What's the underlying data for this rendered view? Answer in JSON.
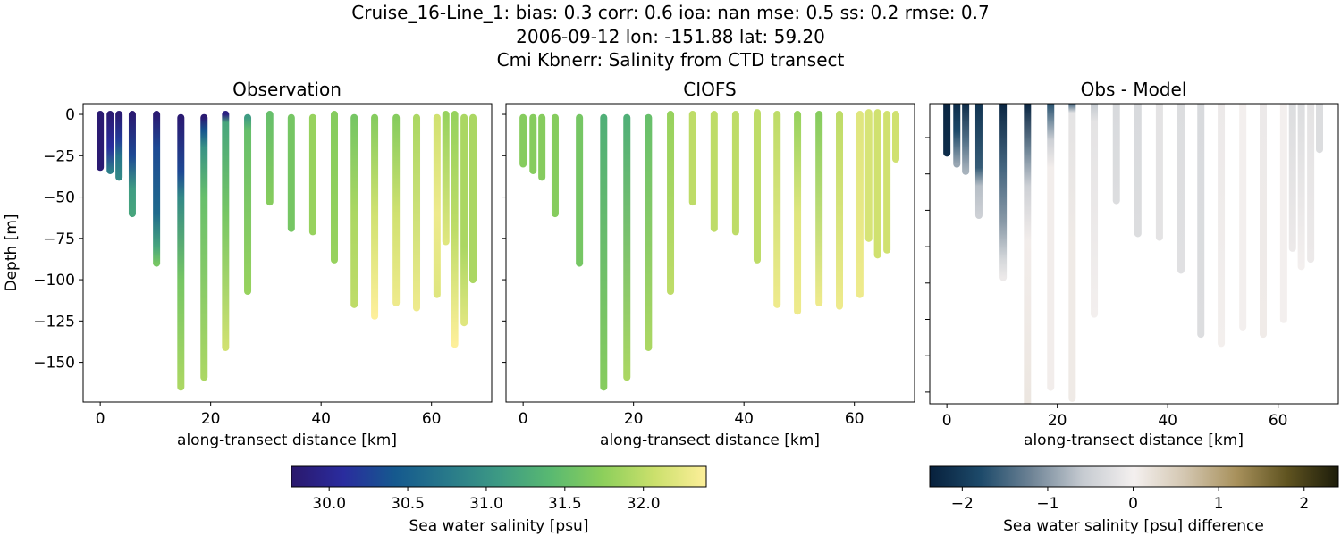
{
  "title_lines": [
    "Cruise_16-Line_1: bias: 0.3  corr: 0.6  ioa: nan  mse: 0.5  ss: 0.2  rmse: 0.7",
    "2006-09-12 lon: -151.88 lat: 59.20",
    "Cmi Kbnerr: Salinity from CTD transect"
  ],
  "chart_data": [
    {
      "type": "scatter",
      "title": "Observation",
      "xlabel": "along-transect distance [km]",
      "ylabel": "Depth [m]",
      "xlim": [
        -3.1,
        70.9
      ],
      "ylim": [
        -174,
        6.5
      ],
      "xticks": [
        0,
        20,
        40,
        60
      ],
      "yticks": [
        0,
        -25,
        -50,
        -75,
        -100,
        -125,
        -150
      ],
      "color_variable": "salinity",
      "stations": [
        {
          "x": 0,
          "profile": [
            [
              0,
              29.8
            ],
            [
              -32,
              29.8
            ]
          ]
        },
        {
          "x": 1.8,
          "profile": [
            [
              0,
              29.8
            ],
            [
              -20,
              30.1
            ],
            [
              -34,
              30.8
            ]
          ]
        },
        {
          "x": 3.4,
          "profile": [
            [
              0,
              29.8
            ],
            [
              -15,
              30.2
            ],
            [
              -25,
              30.7
            ],
            [
              -38,
              30.9
            ]
          ]
        },
        {
          "x": 5.8,
          "profile": [
            [
              0,
              29.8
            ],
            [
              -25,
              30.3
            ],
            [
              -45,
              31.1
            ],
            [
              -60,
              31.2
            ]
          ]
        },
        {
          "x": 10.2,
          "profile": [
            [
              0,
              29.8
            ],
            [
              -20,
              30.3
            ],
            [
              -60,
              30.6
            ],
            [
              -80,
              31.2
            ],
            [
              -90,
              31.6
            ]
          ]
        },
        {
          "x": 14.6,
          "profile": [
            [
              -2,
              29.8
            ],
            [
              -35,
              30.3
            ],
            [
              -50,
              30.9
            ],
            [
              -100,
              31.6
            ],
            [
              -165,
              31.9
            ]
          ]
        },
        {
          "x": 18.8,
          "profile": [
            [
              -2,
              29.8
            ],
            [
              -10,
              30.4
            ],
            [
              -20,
              31.0
            ],
            [
              -50,
              31.5
            ],
            [
              -159,
              31.9
            ]
          ]
        },
        {
          "x": 22.7,
          "profile": [
            [
              0,
              29.9
            ],
            [
              -5,
              31.2
            ],
            [
              -60,
              31.6
            ],
            [
              -141,
              32.1
            ]
          ]
        },
        {
          "x": 26.7,
          "profile": [
            [
              -2,
              31.1
            ],
            [
              -10,
              31.5
            ],
            [
              -107,
              31.8
            ]
          ]
        },
        {
          "x": 30.7,
          "profile": [
            [
              0,
              31.5
            ],
            [
              -53,
              31.7
            ]
          ]
        },
        {
          "x": 34.6,
          "profile": [
            [
              -2,
              31.6
            ],
            [
              -69,
              31.6
            ]
          ]
        },
        {
          "x": 38.5,
          "profile": [
            [
              -2,
              31.8
            ],
            [
              -71,
              31.8
            ]
          ]
        },
        {
          "x": 42.4,
          "profile": [
            [
              0,
              31.7
            ],
            [
              -88,
              31.8
            ]
          ]
        },
        {
          "x": 46.0,
          "profile": [
            [
              -2,
              31.6
            ],
            [
              -60,
              31.9
            ],
            [
              -115,
              32.0
            ]
          ]
        },
        {
          "x": 49.7,
          "profile": [
            [
              -2,
              31.7
            ],
            [
              -60,
              32.1
            ],
            [
              -122,
              32.4
            ]
          ]
        },
        {
          "x": 53.6,
          "profile": [
            [
              -2,
              31.7
            ],
            [
              -60,
              32.1
            ],
            [
              -114,
              32.3
            ]
          ]
        },
        {
          "x": 57.3,
          "profile": [
            [
              -2,
              31.9
            ],
            [
              -117,
              32.3
            ]
          ]
        },
        {
          "x": 61.0,
          "profile": [
            [
              -2,
              32.1
            ],
            [
              -60,
              32.3
            ],
            [
              -109,
              32.2
            ]
          ]
        },
        {
          "x": 62.6,
          "profile": [
            [
              0,
              31.8
            ],
            [
              -77,
              32.2
            ]
          ]
        },
        {
          "x": 64.2,
          "profile": [
            [
              0,
              31.8
            ],
            [
              -70,
              32.0
            ],
            [
              -139,
              32.4
            ]
          ]
        },
        {
          "x": 65.9,
          "profile": [
            [
              -2,
              31.9
            ],
            [
              -80,
              31.9
            ],
            [
              -126,
              32.2
            ]
          ]
        },
        {
          "x": 67.5,
          "profile": [
            [
              -2,
              31.9
            ],
            [
              -100,
              31.9
            ]
          ]
        }
      ]
    },
    {
      "type": "scatter",
      "title": "CIOFS",
      "xlabel": "along-transect distance [km]",
      "xlim": [
        -3.1,
        70.9
      ],
      "ylim": [
        -174,
        6.5
      ],
      "xticks": [
        0,
        20,
        40,
        60
      ],
      "yticks": [
        0,
        -25,
        -50,
        -75,
        -100,
        -125,
        -150
      ],
      "color_variable": "salinity",
      "stations": [
        {
          "x": 0,
          "profile": [
            [
              -2,
              31.7
            ],
            [
              -30,
              31.7
            ]
          ]
        },
        {
          "x": 1.8,
          "profile": [
            [
              -2,
              31.7
            ],
            [
              -34,
              31.7
            ]
          ]
        },
        {
          "x": 3.4,
          "profile": [
            [
              -2,
              31.7
            ],
            [
              -38,
              31.7
            ]
          ]
        },
        {
          "x": 5.8,
          "profile": [
            [
              -2,
              31.7
            ],
            [
              -60,
              31.7
            ]
          ]
        },
        {
          "x": 10.2,
          "profile": [
            [
              -2,
              31.6
            ],
            [
              -90,
              31.6
            ]
          ]
        },
        {
          "x": 14.6,
          "profile": [
            [
              -2,
              31.3
            ],
            [
              -165,
              31.7
            ]
          ]
        },
        {
          "x": 18.8,
          "profile": [
            [
              -2,
              31.3
            ],
            [
              -159,
              31.9
            ]
          ]
        },
        {
          "x": 22.7,
          "profile": [
            [
              -2,
              31.5
            ],
            [
              -141,
              31.9
            ]
          ]
        },
        {
          "x": 26.7,
          "profile": [
            [
              0,
              31.8
            ],
            [
              -107,
              32.0
            ]
          ]
        },
        {
          "x": 30.7,
          "profile": [
            [
              0,
              32.0
            ],
            [
              -53,
              32.0
            ]
          ]
        },
        {
          "x": 34.6,
          "profile": [
            [
              0,
              32.0
            ],
            [
              -69,
              32.0
            ]
          ]
        },
        {
          "x": 38.5,
          "profile": [
            [
              0,
              32.0
            ],
            [
              -71,
              32.0
            ]
          ]
        },
        {
          "x": 42.4,
          "profile": [
            [
              1,
              32.0
            ],
            [
              -88,
              32.0
            ]
          ]
        },
        {
          "x": 46.0,
          "profile": [
            [
              0,
              32.0
            ],
            [
              -115,
              32.3
            ]
          ]
        },
        {
          "x": 49.7,
          "profile": [
            [
              0,
              31.8
            ],
            [
              -60,
              32.2
            ],
            [
              -119,
              32.3
            ]
          ]
        },
        {
          "x": 53.6,
          "profile": [
            [
              0,
              31.7
            ],
            [
              -114,
              32.3
            ]
          ]
        },
        {
          "x": 57.3,
          "profile": [
            [
              0,
              32.0
            ],
            [
              -116,
              32.3
            ]
          ]
        },
        {
          "x": 61.0,
          "profile": [
            [
              0,
              32.2
            ],
            [
              -109,
              32.3
            ]
          ]
        },
        {
          "x": 62.6,
          "profile": [
            [
              1,
              32.15
            ],
            [
              -75,
              32.15
            ]
          ]
        },
        {
          "x": 64.2,
          "profile": [
            [
              1,
              32.1
            ],
            [
              -85,
              32.1
            ]
          ]
        },
        {
          "x": 65.9,
          "profile": [
            [
              0,
              32.1
            ],
            [
              -82,
              32.1
            ]
          ]
        },
        {
          "x": 67.5,
          "profile": [
            [
              0,
              32.1
            ],
            [
              -27,
              32.1
            ]
          ]
        }
      ]
    },
    {
      "type": "scatter",
      "title": "Obs - Model",
      "xlabel": "along-transect distance [km]",
      "xlim": [
        -3.1,
        70.9
      ],
      "ylim": [
        -169,
        -5
      ],
      "xticks": [
        0,
        20,
        40,
        60
      ],
      "color_variable": "salinity difference",
      "stations": [
        {
          "x": 0,
          "profile": [
            [
              -5,
              -2.3
            ],
            [
              -32,
              -2.2
            ]
          ]
        },
        {
          "x": 1.8,
          "profile": [
            [
              -5,
              -2.2
            ],
            [
              -20,
              -1.8
            ],
            [
              -38,
              -0.9
            ]
          ]
        },
        {
          "x": 3.4,
          "profile": [
            [
              -5,
              -2.2
            ],
            [
              -25,
              -1.4
            ],
            [
              -42,
              -0.8
            ]
          ]
        },
        {
          "x": 5.8,
          "profile": [
            [
              -5,
              -2.1
            ],
            [
              -40,
              -1.6
            ],
            [
              -50,
              -0.7
            ],
            [
              -66,
              -0.5
            ]
          ]
        },
        {
          "x": 10.2,
          "profile": [
            [
              -5,
              -2.3
            ],
            [
              -40,
              -1.5
            ],
            [
              -70,
              -1.0
            ],
            [
              -90,
              -0.4
            ],
            [
              -100,
              -0.1
            ]
          ]
        },
        {
          "x": 14.6,
          "profile": [
            [
              -5,
              -2.3
            ],
            [
              -30,
              -1.2
            ],
            [
              -50,
              -0.5
            ],
            [
              -80,
              0.05
            ],
            [
              -169,
              0.15
            ]
          ]
        },
        {
          "x": 18.8,
          "profile": [
            [
              -5,
              -1.7
            ],
            [
              -25,
              -0.5
            ],
            [
              -40,
              0.05
            ],
            [
              -160,
              0.05
            ]
          ]
        },
        {
          "x": 22.7,
          "profile": [
            [
              -5,
              -1.5
            ],
            [
              -10,
              -0.2
            ],
            [
              -80,
              0.1
            ],
            [
              -166,
              0.1
            ]
          ]
        },
        {
          "x": 26.7,
          "profile": [
            [
              -5,
              -0.6
            ],
            [
              -15,
              -0.2
            ],
            [
              -120,
              0.0
            ]
          ]
        },
        {
          "x": 30.7,
          "profile": [
            [
              -5,
              -0.35
            ],
            [
              -58,
              -0.3
            ]
          ]
        },
        {
          "x": 34.6,
          "profile": [
            [
              -5,
              -0.35
            ],
            [
              -76,
              -0.3
            ]
          ]
        },
        {
          "x": 38.5,
          "profile": [
            [
              -5,
              -0.2
            ],
            [
              -78,
              -0.2
            ]
          ]
        },
        {
          "x": 42.4,
          "profile": [
            [
              -5,
              -0.3
            ],
            [
              -96,
              -0.25
            ]
          ]
        },
        {
          "x": 46.0,
          "profile": [
            [
              -5,
              -0.35
            ],
            [
              -131,
              -0.3
            ]
          ]
        },
        {
          "x": 49.7,
          "profile": [
            [
              -5,
              -0.1
            ],
            [
              -136,
              0.03
            ]
          ]
        },
        {
          "x": 53.6,
          "profile": [
            [
              -5,
              0.0
            ],
            [
              -127,
              0.02
            ]
          ]
        },
        {
          "x": 57.3,
          "profile": [
            [
              -5,
              -0.1
            ],
            [
              -131,
              0.08
            ]
          ]
        },
        {
          "x": 61.0,
          "profile": [
            [
              -5,
              0.02
            ],
            [
              -123,
              0.02
            ]
          ]
        },
        {
          "x": 62.6,
          "profile": [
            [
              -5,
              -0.3
            ],
            [
              -84,
              -0.1
            ]
          ]
        },
        {
          "x": 64.2,
          "profile": [
            [
              -5,
              -0.3
            ],
            [
              -94,
              0.0
            ]
          ]
        },
        {
          "x": 65.9,
          "profile": [
            [
              -5,
              -0.2
            ],
            [
              -90,
              -0.1
            ]
          ]
        },
        {
          "x": 67.5,
          "profile": [
            [
              -5,
              -0.3
            ],
            [
              -30,
              -0.3
            ]
          ]
        }
      ]
    }
  ],
  "colorbars": [
    {
      "label": "Sea water salinity [psu]",
      "colormap": "haline",
      "range": [
        29.76,
        32.4
      ],
      "ticks": [
        "30.0",
        "30.5",
        "31.0",
        "31.5",
        "32.0"
      ],
      "colors": [
        "#2a186c",
        "#2a2c9e",
        "#15598e",
        "#28798a",
        "#3d9a84",
        "#59b971",
        "#8ccf5b",
        "#cbe06c",
        "#fdef9a"
      ]
    },
    {
      "label": "Sea water salinity [psu] difference",
      "colormap": "diff",
      "range": [
        -2.38,
        2.4
      ],
      "ticks": [
        "−2",
        "−1",
        "0",
        "1",
        "2"
      ],
      "colors": [
        "#07203c",
        "#1d4a6a",
        "#6f8496",
        "#c6cbd1",
        "#f4f0ef",
        "#d3c6b0",
        "#a8915c",
        "#5f5320",
        "#1c1c0a"
      ]
    }
  ]
}
